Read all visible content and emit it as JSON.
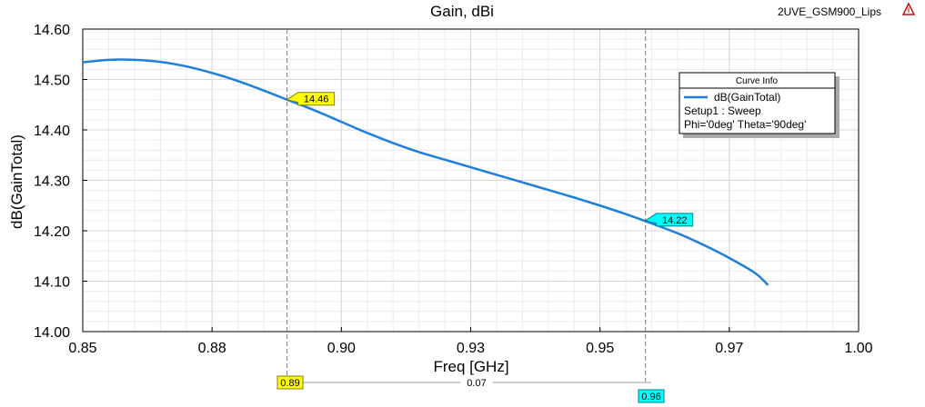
{
  "header": {
    "title": "Gain, dBi",
    "project": "2UVE_GSM900_Lips"
  },
  "legend": {
    "title": "Curve Info",
    "trace": "dB(GainTotal)",
    "setup": "Setup1 : Sweep",
    "params": "Phi='0deg' Theta='90deg'"
  },
  "delta": {
    "value_label": "0.07",
    "m1_label": "0.89",
    "m2_label": "0.96"
  },
  "colors": {
    "curve": "#1e7fe0",
    "marker1": "#ffff00",
    "marker2": "#00ffff",
    "grid": "#d8d8d8"
  },
  "chart_data": {
    "type": "line",
    "title": "Gain, dBi",
    "xlabel": "Freq [GHz]",
    "ylabel": "dB(GainTotal)",
    "xlim": [
      0.85,
      1.0
    ],
    "ylim": [
      14.0,
      14.6
    ],
    "x_ticks": [
      0.85,
      0.875,
      0.9,
      0.925,
      0.95,
      0.975,
      1.0
    ],
    "x_tick_labels": [
      "0.85",
      "0.88",
      "0.90",
      "0.93",
      "0.95",
      "0.97",
      "1.00"
    ],
    "y_ticks": [
      14.0,
      14.1,
      14.2,
      14.3,
      14.4,
      14.5,
      14.6
    ],
    "y_tick_labels": [
      "14.00",
      "14.10",
      "14.20",
      "14.30",
      "14.40",
      "14.50",
      "14.60"
    ],
    "grid": true,
    "legend_position": "top-right",
    "series": [
      {
        "name": "dB(GainTotal)",
        "x": [
          0.85,
          0.855,
          0.86,
          0.865,
          0.87,
          0.875,
          0.88,
          0.885,
          0.8895,
          0.895,
          0.9,
          0.905,
          0.91,
          0.915,
          0.92,
          0.925,
          0.93,
          0.935,
          0.94,
          0.945,
          0.95,
          0.955,
          0.9588,
          0.965,
          0.97,
          0.975,
          0.98,
          0.9825
        ],
        "y": [
          14.534,
          14.539,
          14.539,
          14.535,
          14.526,
          14.513,
          14.497,
          14.478,
          14.46,
          14.438,
          14.416,
          14.394,
          14.374,
          14.356,
          14.341,
          14.326,
          14.311,
          14.296,
          14.281,
          14.266,
          14.25,
          14.233,
          14.219,
          14.195,
          14.172,
          14.146,
          14.116,
          14.092
        ]
      }
    ],
    "markers": [
      {
        "name": "m1",
        "x": 0.8895,
        "y": 14.46,
        "label": "14.46"
      },
      {
        "name": "m2",
        "x": 0.9588,
        "y": 14.22,
        "label": "14.22"
      }
    ]
  }
}
